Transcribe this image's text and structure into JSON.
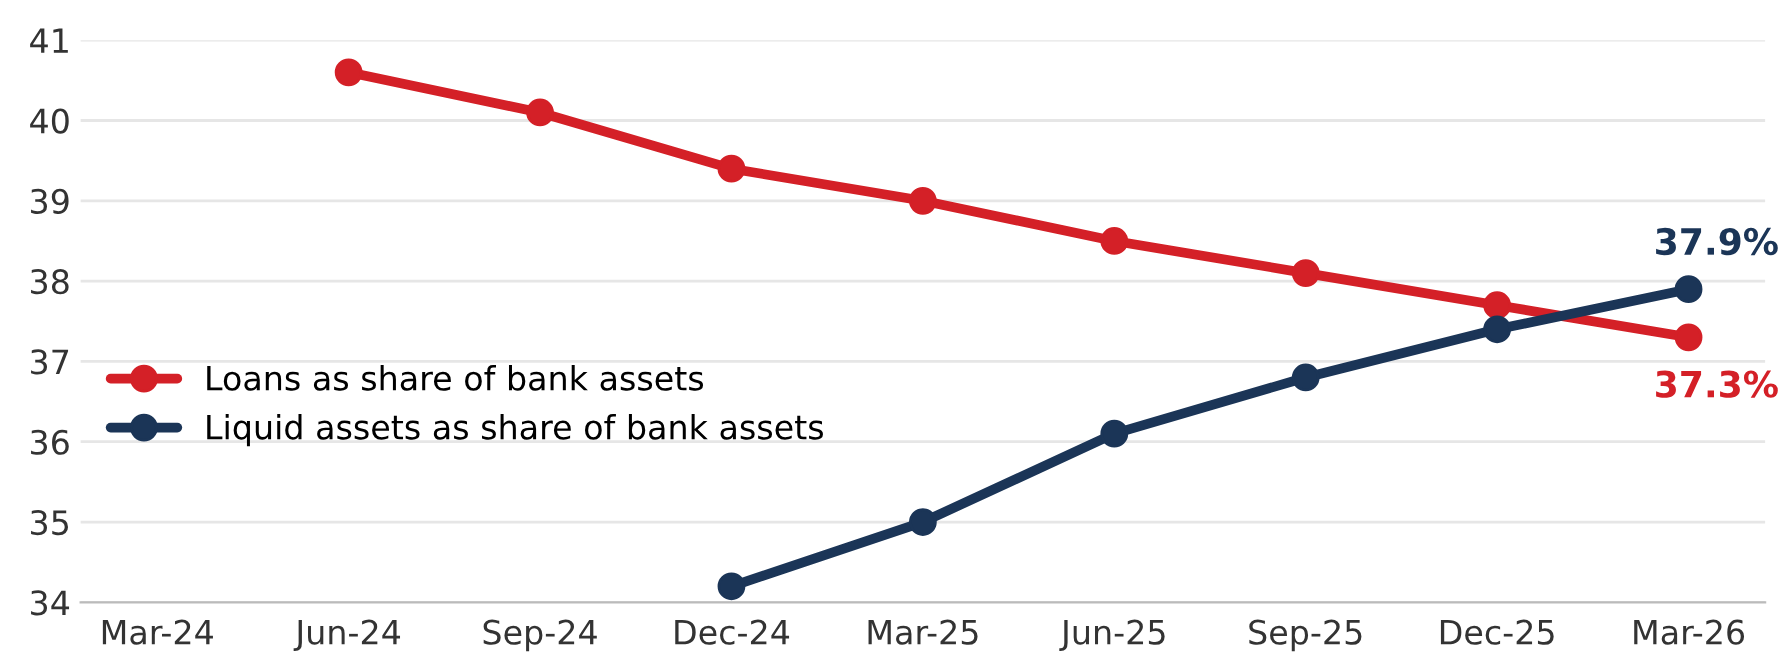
{
  "chart_data": {
    "type": "line",
    "categories": [
      "Mar-24",
      "Jun-24",
      "Sep-24",
      "Dec-24",
      "Mar-25",
      "Jun-25",
      "Sep-25",
      "Dec-25",
      "Mar-26"
    ],
    "series": [
      {
        "name": "Loans as share of bank assets",
        "color": "#d42027",
        "values": [
          null,
          40.6,
          40.1,
          39.4,
          39.0,
          38.5,
          38.1,
          37.7,
          37.3
        ],
        "value_labels": [
          null,
          null,
          null,
          null,
          null,
          null,
          null,
          null,
          "37.3%"
        ]
      },
      {
        "name": "Liquid assets as share of bank assets",
        "color": "#1b3557",
        "values": [
          null,
          null,
          null,
          34.2,
          35.0,
          36.1,
          36.8,
          37.4,
          37.9
        ],
        "value_labels": [
          null,
          null,
          null,
          null,
          null,
          null,
          null,
          null,
          "37.9%"
        ]
      }
    ],
    "ylim": [
      34,
      41
    ],
    "yticks": [
      34,
      35,
      36,
      37,
      38,
      39,
      40,
      41
    ],
    "grid": "y",
    "legend": "left",
    "marker": "circle",
    "line_style": "solid"
  }
}
